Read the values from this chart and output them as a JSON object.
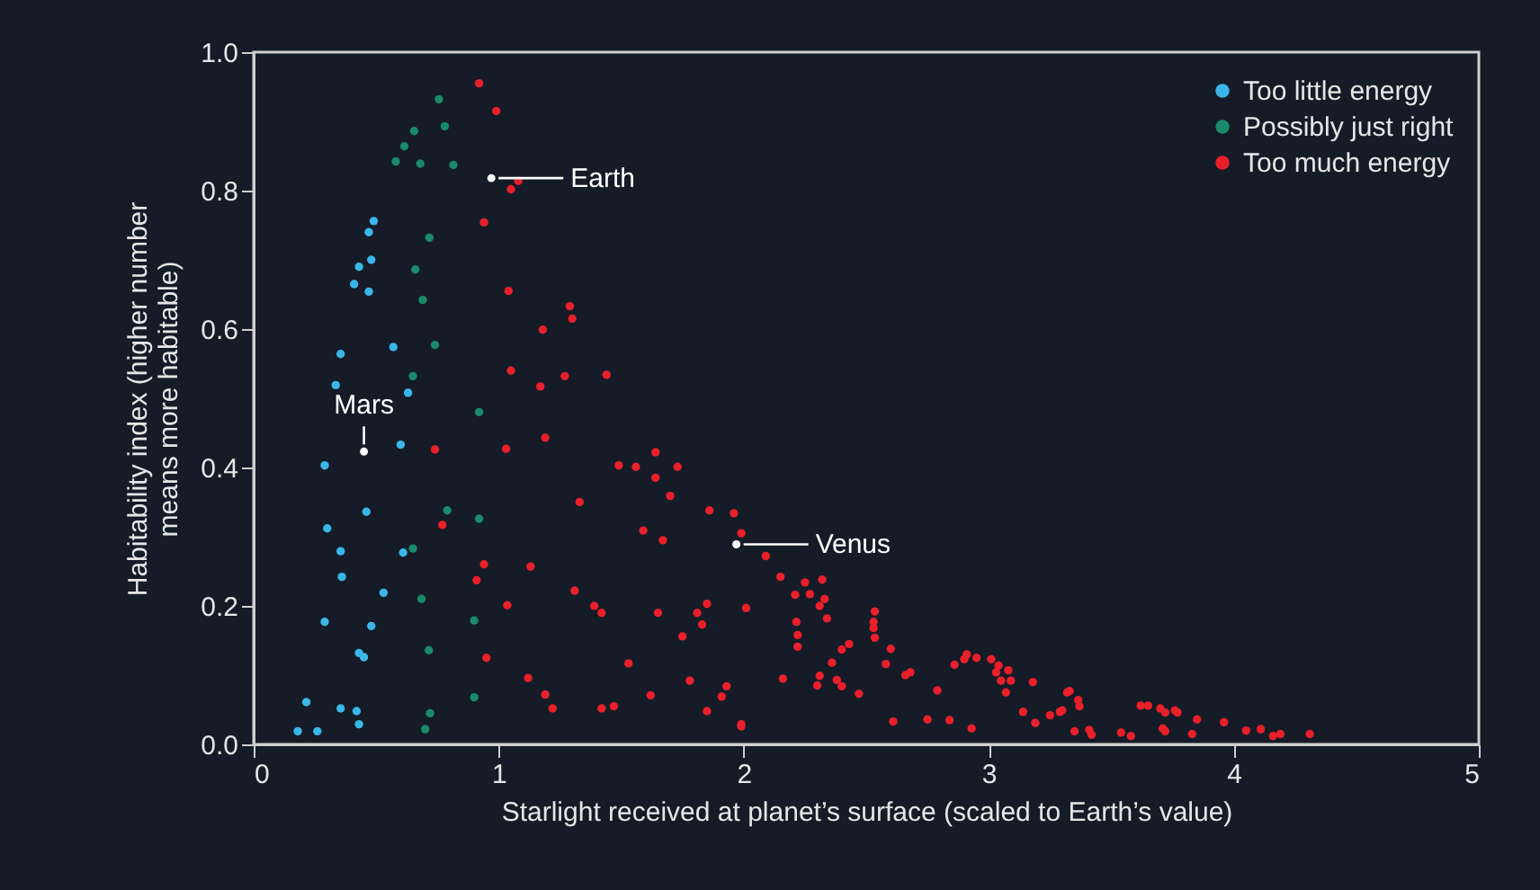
{
  "chart_data": {
    "type": "scatter",
    "xlabel": "Starlight received at planet’s surface (scaled to Earth’s value)",
    "ylabel": "Habitability index (higher number\nmeans more habitable)",
    "xlim": [
      0,
      5
    ],
    "xticks": [
      0,
      1,
      2,
      3,
      4,
      5
    ],
    "ylim": [
      0,
      1
    ],
    "yticks": [
      {
        "value": 0,
        "label": "0.0"
      },
      0.2,
      0.4,
      0.6,
      0.8,
      {
        "value": 1,
        "label": "1.0"
      }
    ],
    "grid": false,
    "legend": "top right",
    "marker": "circle",
    "series": [
      {
        "name": "Too little energy",
        "color": "#3ab7e8",
        "x": [
          0.49,
          0.47,
          0.48,
          0.43,
          0.41,
          0.47,
          0.355,
          0.57,
          0.335,
          0.63,
          0.6,
          0.29,
          0.46,
          0.3,
          0.355,
          0.61,
          0.36,
          0.53,
          0.29,
          0.48,
          0.43,
          0.45,
          0.215,
          0.355,
          0.42,
          0.43,
          0.18,
          0.26
        ],
        "values": [
          0.756,
          0.74,
          0.7,
          0.69,
          0.665,
          0.654,
          0.564,
          0.574,
          0.519,
          0.508,
          0.433,
          0.403,
          0.336,
          0.312,
          0.279,
          0.277,
          0.242,
          0.219,
          0.177,
          0.171,
          0.132,
          0.126,
          0.061,
          0.052,
          0.048,
          0.029,
          0.019,
          0.019
        ]
      },
      {
        "name": "Possibly just right",
        "color": "#1a8a6a",
        "x": [
          0.756,
          0.78,
          0.655,
          0.615,
          0.58,
          0.68,
          0.815,
          0.717,
          0.66,
          0.69,
          0.74,
          0.65,
          0.92,
          0.79,
          0.92,
          0.65,
          0.685,
          0.9,
          0.715,
          0.9,
          0.72,
          0.7
        ],
        "values": [
          0.932,
          0.893,
          0.886,
          0.864,
          0.842,
          0.839,
          0.837,
          0.732,
          0.686,
          0.642,
          0.577,
          0.532,
          0.48,
          0.338,
          0.326,
          0.283,
          0.21,
          0.179,
          0.136,
          0.068,
          0.045,
          0.022
        ]
      },
      {
        "name": "Too much energy",
        "color": "#e8202a",
        "x": [
          0.92,
          0.99,
          1.08,
          1.05,
          0.94,
          1.04,
          1.29,
          1.3,
          1.18,
          1.05,
          1.17,
          1.27,
          1.44,
          0.74,
          1.03,
          1.19,
          1.49,
          1.33,
          0.77,
          0.94,
          1.13,
          0.91,
          1.31,
          1.035,
          1.39,
          1.42,
          0.95,
          1.12,
          1.19,
          1.22,
          1.42,
          1.47,
          1.53,
          1.64,
          1.56,
          1.73,
          1.64,
          1.7,
          1.86,
          1.96,
          1.59,
          1.67,
          1.99,
          2.09,
          2.15,
          2.25,
          2.32,
          2.21,
          2.27,
          2.33,
          2.31,
          2.34,
          2.215,
          2.22,
          2.22,
          2.01,
          1.85,
          1.81,
          1.83,
          1.65,
          1.75,
          1.78,
          1.62,
          1.93,
          1.91,
          1.85,
          1.99,
          1.99,
          2.16,
          2.3,
          2.31,
          2.38,
          2.4,
          2.36,
          2.4,
          2.43,
          2.47,
          2.535,
          2.53,
          2.53,
          2.535,
          2.58,
          2.6,
          2.61,
          2.68,
          2.66,
          2.75,
          2.79,
          2.84,
          2.86,
          2.9,
          2.91,
          2.95,
          2.93,
          3.01,
          3.04,
          3.08,
          3.03,
          3.05,
          3.09,
          3.07,
          3.18,
          3.14,
          3.19,
          3.25,
          3.29,
          3.3,
          3.32,
          3.33,
          3.365,
          3.37,
          3.35,
          3.41,
          3.42,
          3.54,
          3.58,
          3.62,
          3.65,
          3.7,
          3.72,
          3.76,
          3.77,
          3.71,
          3.72,
          3.83,
          3.85,
          3.96,
          4.05,
          4.11,
          4.16,
          4.19,
          4.31
        ],
        "values": [
          0.955,
          0.915,
          0.814,
          0.802,
          0.754,
          0.655,
          0.633,
          0.615,
          0.599,
          0.54,
          0.517,
          0.532,
          0.534,
          0.426,
          0.427,
          0.443,
          0.403,
          0.35,
          0.317,
          0.26,
          0.257,
          0.237,
          0.222,
          0.201,
          0.2,
          0.19,
          0.125,
          0.096,
          0.072,
          0.052,
          0.052,
          0.055,
          0.117,
          0.422,
          0.401,
          0.401,
          0.385,
          0.359,
          0.338,
          0.334,
          0.309,
          0.295,
          0.305,
          0.272,
          0.242,
          0.234,
          0.238,
          0.216,
          0.217,
          0.21,
          0.2,
          0.182,
          0.177,
          0.158,
          0.141,
          0.197,
          0.203,
          0.19,
          0.173,
          0.19,
          0.156,
          0.092,
          0.071,
          0.084,
          0.069,
          0.048,
          0.029,
          0.026,
          0.095,
          0.085,
          0.099,
          0.093,
          0.084,
          0.118,
          0.137,
          0.145,
          0.073,
          0.192,
          0.177,
          0.168,
          0.154,
          0.116,
          0.138,
          0.033,
          0.104,
          0.1,
          0.036,
          0.078,
          0.035,
          0.115,
          0.123,
          0.13,
          0.125,
          0.023,
          0.123,
          0.114,
          0.107,
          0.104,
          0.092,
          0.092,
          0.075,
          0.09,
          0.047,
          0.031,
          0.042,
          0.047,
          0.049,
          0.075,
          0.077,
          0.064,
          0.055,
          0.019,
          0.021,
          0.014,
          0.017,
          0.012,
          0.056,
          0.056,
          0.052,
          0.046,
          0.049,
          0.046,
          0.023,
          0.019,
          0.015,
          0.036,
          0.032,
          0.02,
          0.022,
          0.012,
          0.015,
          0.015
        ]
      }
    ],
    "annotations": [
      {
        "text": "Earth",
        "x": 0.97,
        "y": 0.818
      },
      {
        "text": "Mars",
        "x": 0.45,
        "y": 0.423
      },
      {
        "text": "Venus",
        "x": 1.97,
        "y": 0.289
      }
    ]
  }
}
